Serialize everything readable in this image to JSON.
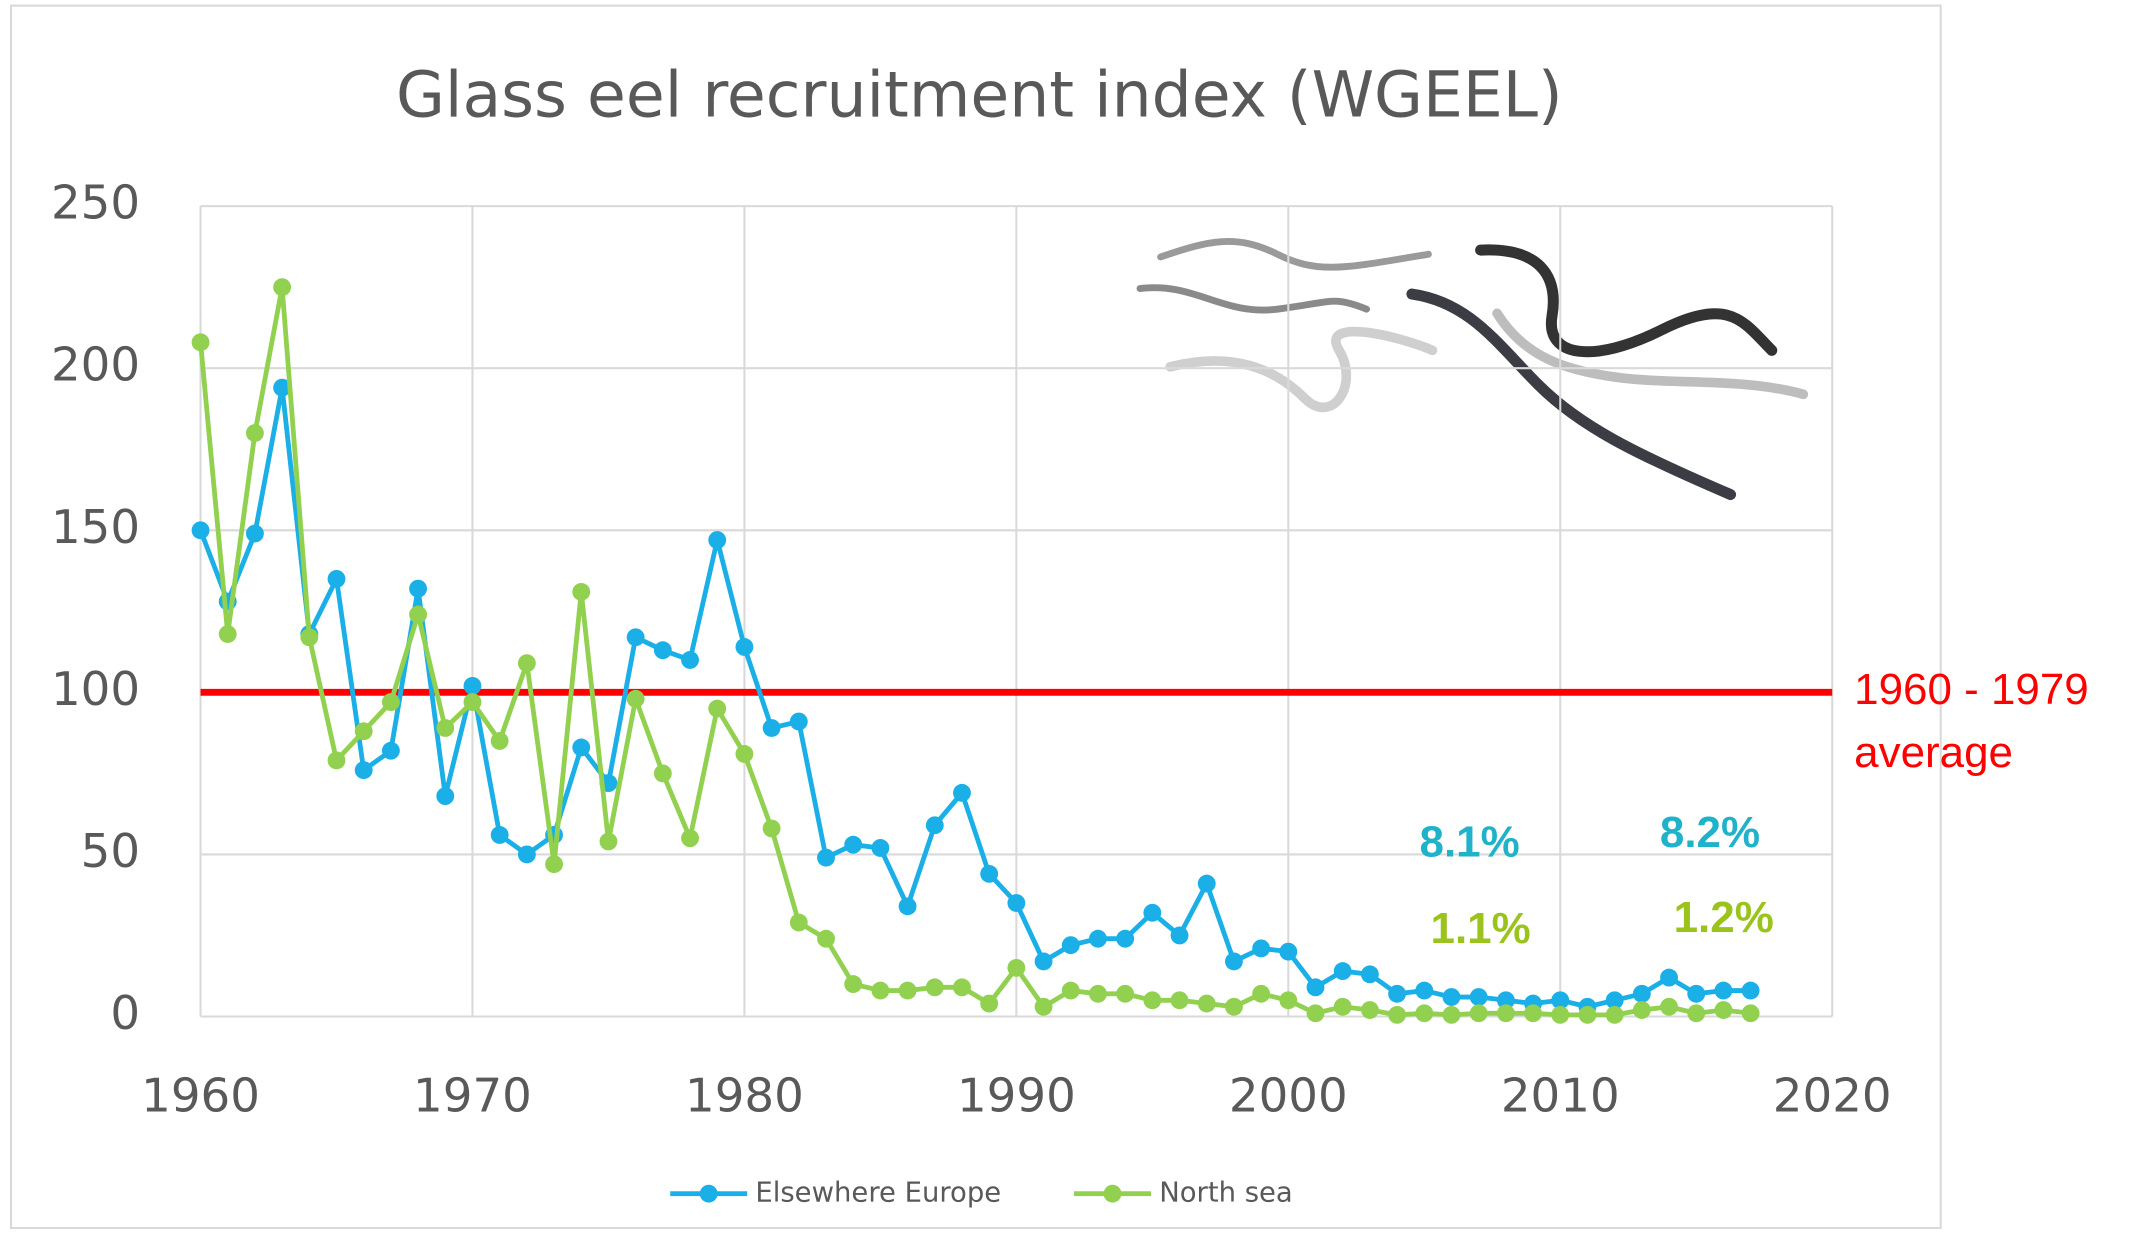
{
  "chart_data": {
    "type": "line",
    "title": "Glass eel recruitment index (WGEEL)",
    "x": [
      1960,
      1961,
      1962,
      1963,
      1964,
      1965,
      1966,
      1967,
      1968,
      1969,
      1970,
      1971,
      1972,
      1973,
      1974,
      1975,
      1976,
      1977,
      1978,
      1979,
      1980,
      1981,
      1982,
      1983,
      1984,
      1985,
      1986,
      1987,
      1988,
      1989,
      1990,
      1991,
      1992,
      1993,
      1994,
      1995,
      1996,
      1997,
      1998,
      1999,
      2000,
      2001,
      2002,
      2003,
      2004,
      2005,
      2006,
      2007,
      2008,
      2009,
      2010,
      2011,
      2012,
      2013,
      2014,
      2015,
      2016,
      2017
    ],
    "series": [
      {
        "name": "Elsewhere Europe",
        "color": "#1aafe6",
        "values": [
          150,
          128,
          149,
          194,
          118,
          135,
          76,
          82,
          132,
          68,
          102,
          56,
          50,
          56,
          83,
          72,
          117,
          113,
          110,
          147,
          114,
          89,
          91,
          49,
          53,
          52,
          34,
          59,
          69,
          44,
          35,
          17,
          22,
          24,
          24,
          32,
          25,
          41,
          17,
          21,
          20,
          9,
          14,
          13,
          7,
          8,
          6,
          6,
          5,
          4,
          5,
          3,
          5,
          7,
          12,
          7,
          8,
          8
        ]
      },
      {
        "name": "North sea",
        "color": "#92d050",
        "values": [
          208,
          118,
          180,
          225,
          117,
          79,
          88,
          97,
          124,
          89,
          97,
          85,
          109,
          47,
          131,
          54,
          98,
          75,
          55,
          95,
          81,
          58,
          29,
          24,
          10,
          8,
          8,
          9,
          9,
          4,
          15,
          3,
          8,
          7,
          7,
          5,
          5,
          4,
          3,
          7,
          5,
          1,
          3,
          2,
          0.5,
          1,
          0.5,
          1,
          1,
          1,
          0.5,
          0.5,
          0.5,
          2,
          3,
          1,
          2,
          1
        ]
      }
    ],
    "xlim": [
      1960,
      2020
    ],
    "xticks": [
      1960,
      1970,
      1980,
      1990,
      2000,
      2010,
      2020
    ],
    "ylim": [
      0,
      250
    ],
    "yticks": [
      0,
      50,
      100,
      150,
      200,
      250
    ],
    "grid": true,
    "legend": "bottom",
    "reference_line": {
      "value": 100,
      "color": "#ff0000",
      "label": [
        "1960 - 1979",
        "average"
      ]
    },
    "annotations": [
      {
        "text": "8.1%",
        "color": "#20b2c8"
      },
      {
        "text": "1.1%",
        "color": "#9ac31c"
      },
      {
        "text": "8.2%",
        "color": "#20b2c8"
      },
      {
        "text": "1.2%",
        "color": "#9ac31c"
      }
    ]
  }
}
